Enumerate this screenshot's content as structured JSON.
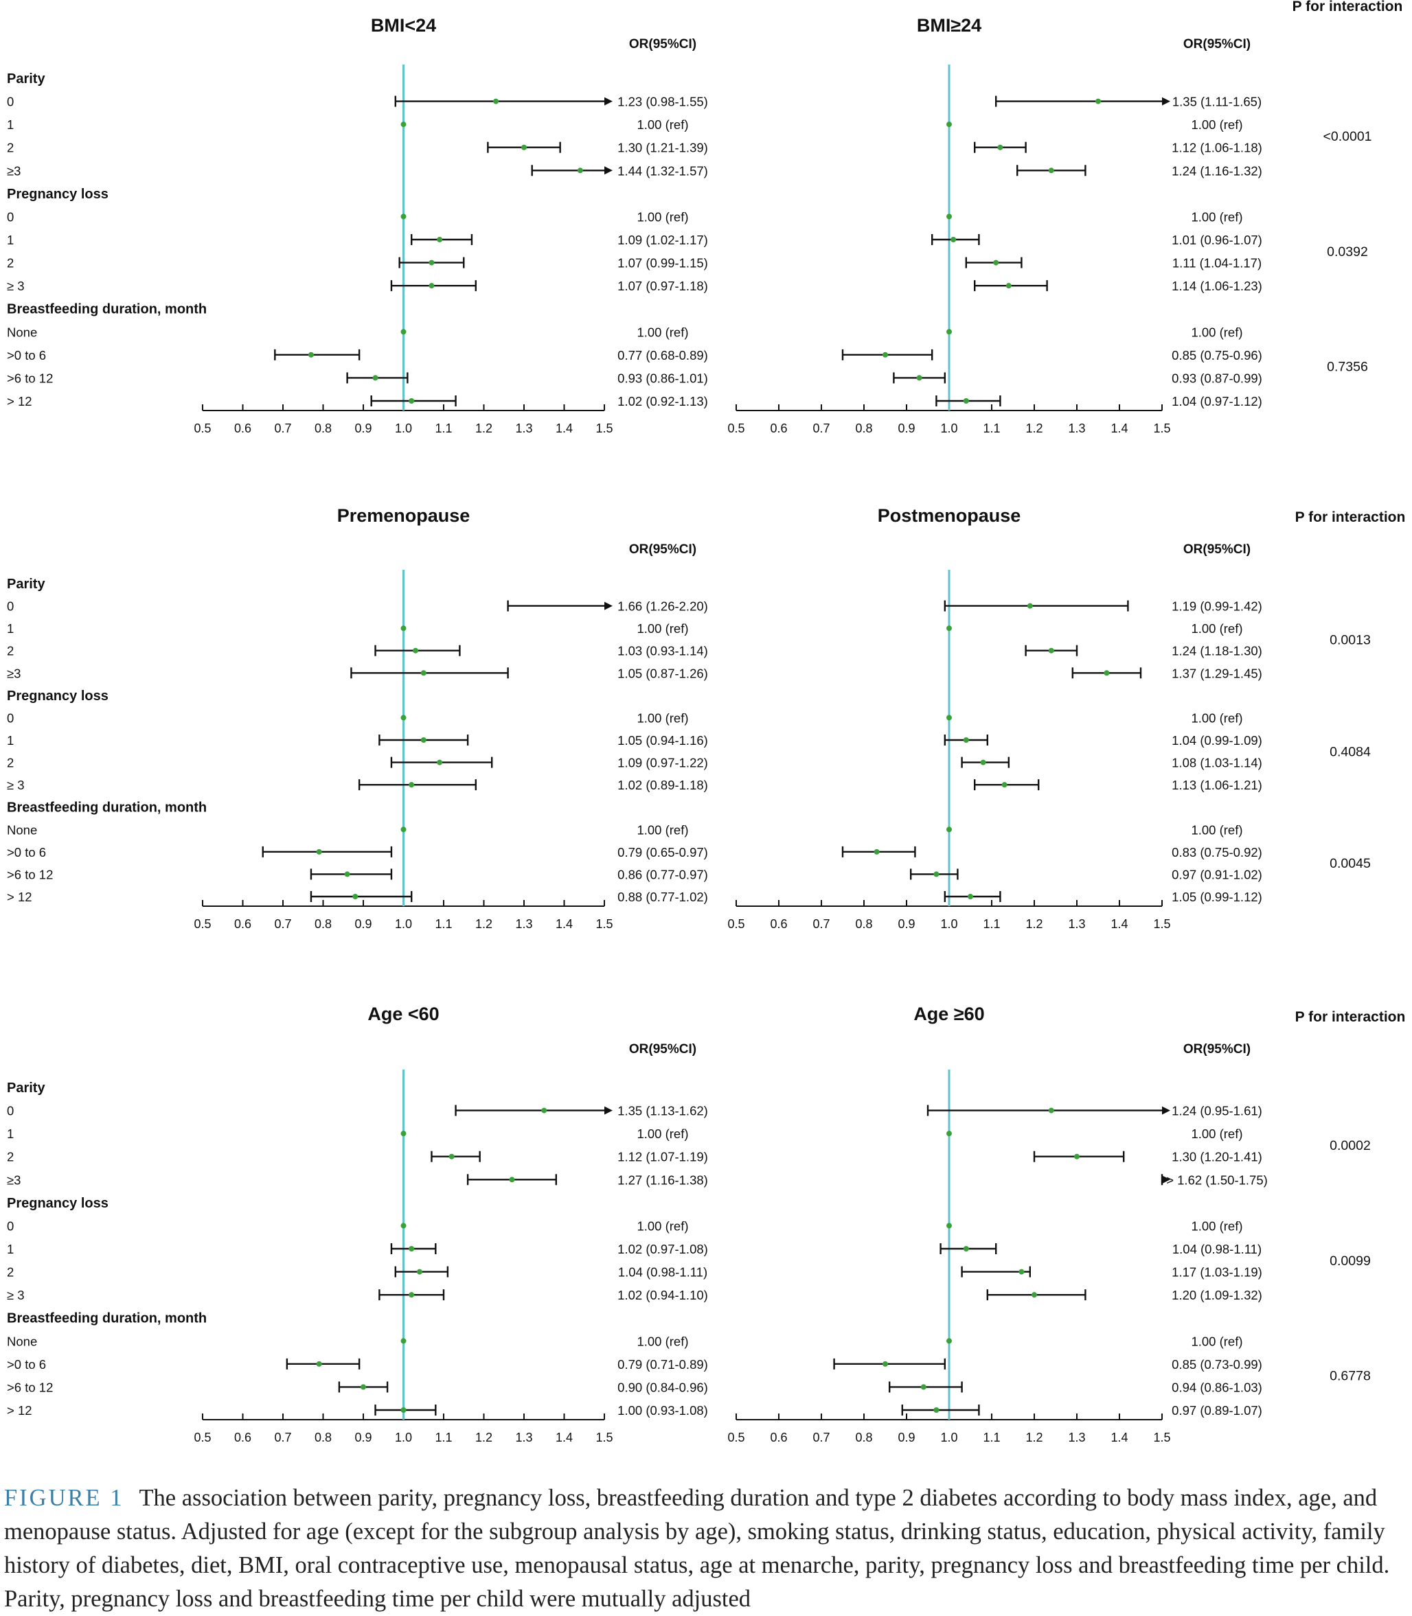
{
  "figure": {
    "p_header": "P for interaction",
    "or_header": "OR(95%CI)",
    "axis_ticks": [
      "0.5",
      "0.6",
      "0.7",
      "0.8",
      "0.9",
      "1.0",
      "1.1",
      "1.2",
      "1.3",
      "1.4",
      "1.5"
    ],
    "rows": [
      {
        "label": "Parity",
        "heading": true
      },
      {
        "label": "0"
      },
      {
        "label": "1"
      },
      {
        "label": "2"
      },
      {
        "label": "≥3"
      },
      {
        "label": "Pregnancy loss",
        "heading": true
      },
      {
        "label": "0"
      },
      {
        "label": "1"
      },
      {
        "label": "2"
      },
      {
        "label": "≥ 3"
      },
      {
        "label": "Breastfeeding duration, month",
        "heading": true
      },
      {
        "label": "None"
      },
      {
        "label": ">0 to 6"
      },
      {
        "label": ">6 to 12"
      },
      {
        "label": "> 12"
      }
    ]
  },
  "chart_data": [
    {
      "type": "forest",
      "title": "BMI<24",
      "x_range": [
        0.5,
        1.5
      ],
      "reference_line": 1.0,
      "points": [
        {
          "group": "Parity",
          "category": "0",
          "or": 1.23,
          "lo": 0.98,
          "hi": 1.55,
          "text": "1.23 (0.98-1.55)"
        },
        {
          "group": "Parity",
          "category": "1",
          "or": 1.0,
          "lo": 1.0,
          "hi": 1.0,
          "text": "1.00 (ref)"
        },
        {
          "group": "Parity",
          "category": "2",
          "or": 1.3,
          "lo": 1.21,
          "hi": 1.39,
          "text": "1.30 (1.21-1.39)"
        },
        {
          "group": "Parity",
          "category": "≥3",
          "or": 1.44,
          "lo": 1.32,
          "hi": 1.57,
          "text": "1.44 (1.32-1.57)"
        },
        {
          "group": "Pregnancy loss",
          "category": "0",
          "or": 1.0,
          "lo": 1.0,
          "hi": 1.0,
          "text": "1.00 (ref)"
        },
        {
          "group": "Pregnancy loss",
          "category": "1",
          "or": 1.09,
          "lo": 1.02,
          "hi": 1.17,
          "text": "1.09 (1.02-1.17)"
        },
        {
          "group": "Pregnancy loss",
          "category": "2",
          "or": 1.07,
          "lo": 0.99,
          "hi": 1.15,
          "text": "1.07 (0.99-1.15)"
        },
        {
          "group": "Pregnancy loss",
          "category": "≥ 3",
          "or": 1.07,
          "lo": 0.97,
          "hi": 1.18,
          "text": "1.07 (0.97-1.18)"
        },
        {
          "group": "Breastfeeding",
          "category": "None",
          "or": 1.0,
          "lo": 1.0,
          "hi": 1.0,
          "text": "1.00 (ref)"
        },
        {
          "group": "Breastfeeding",
          "category": ">0 to 6",
          "or": 0.77,
          "lo": 0.68,
          "hi": 0.89,
          "text": "0.77 (0.68-0.89)"
        },
        {
          "group": "Breastfeeding",
          "category": ">6 to 12",
          "or": 0.93,
          "lo": 0.86,
          "hi": 1.01,
          "text": "0.93 (0.86-1.01)"
        },
        {
          "group": "Breastfeeding",
          "category": "> 12",
          "or": 1.02,
          "lo": 0.92,
          "hi": 1.13,
          "text": "1.02 (0.92-1.13)"
        }
      ]
    },
    {
      "type": "forest",
      "title": "BMI≥24",
      "x_range": [
        0.5,
        1.5
      ],
      "reference_line": 1.0,
      "p_values": [
        "<0.0001",
        "0.0392",
        "0.7356"
      ],
      "points": [
        {
          "group": "Parity",
          "category": "0",
          "or": 1.35,
          "lo": 1.11,
          "hi": 1.65,
          "text": "1.35 (1.11-1.65)"
        },
        {
          "group": "Parity",
          "category": "1",
          "or": 1.0,
          "lo": 1.0,
          "hi": 1.0,
          "text": "1.00 (ref)"
        },
        {
          "group": "Parity",
          "category": "2",
          "or": 1.12,
          "lo": 1.06,
          "hi": 1.18,
          "text": "1.12 (1.06-1.18)"
        },
        {
          "group": "Parity",
          "category": "≥3",
          "or": 1.24,
          "lo": 1.16,
          "hi": 1.32,
          "text": "1.24 (1.16-1.32)"
        },
        {
          "group": "Pregnancy loss",
          "category": "0",
          "or": 1.0,
          "lo": 1.0,
          "hi": 1.0,
          "text": "1.00 (ref)"
        },
        {
          "group": "Pregnancy loss",
          "category": "1",
          "or": 1.01,
          "lo": 0.96,
          "hi": 1.07,
          "text": "1.01 (0.96-1.07)"
        },
        {
          "group": "Pregnancy loss",
          "category": "2",
          "or": 1.11,
          "lo": 1.04,
          "hi": 1.17,
          "text": "1.11 (1.04-1.17)"
        },
        {
          "group": "Pregnancy loss",
          "category": "≥ 3",
          "or": 1.14,
          "lo": 1.06,
          "hi": 1.23,
          "text": "1.14 (1.06-1.23)"
        },
        {
          "group": "Breastfeeding",
          "category": "None",
          "or": 1.0,
          "lo": 1.0,
          "hi": 1.0,
          "text": "1.00 (ref)"
        },
        {
          "group": "Breastfeeding",
          "category": ">0 to 6",
          "or": 0.85,
          "lo": 0.75,
          "hi": 0.96,
          "text": "0.85 (0.75-0.96)"
        },
        {
          "group": "Breastfeeding",
          "category": ">6 to 12",
          "or": 0.93,
          "lo": 0.87,
          "hi": 0.99,
          "text": "0.93 (0.87-0.99)"
        },
        {
          "group": "Breastfeeding",
          "category": "> 12",
          "or": 1.04,
          "lo": 0.97,
          "hi": 1.12,
          "text": "1.04 (0.97-1.12)"
        }
      ]
    },
    {
      "type": "forest",
      "title": "Premenopause",
      "x_range": [
        0.5,
        1.5
      ],
      "reference_line": 1.0,
      "points": [
        {
          "group": "Parity",
          "category": "0",
          "or": 1.66,
          "lo": 1.26,
          "hi": 2.2,
          "text": "1.66 (1.26-2.20)"
        },
        {
          "group": "Parity",
          "category": "1",
          "or": 1.0,
          "lo": 1.0,
          "hi": 1.0,
          "text": "1.00 (ref)"
        },
        {
          "group": "Parity",
          "category": "2",
          "or": 1.03,
          "lo": 0.93,
          "hi": 1.14,
          "text": "1.03 (0.93-1.14)"
        },
        {
          "group": "Parity",
          "category": "≥ 3",
          "or": 1.05,
          "lo": 0.87,
          "hi": 1.26,
          "text": "1.05 (0.87-1.26)"
        },
        {
          "group": "Pregnancy loss",
          "category": "0",
          "or": 1.0,
          "lo": 1.0,
          "hi": 1.0,
          "text": "1.00 (ref)"
        },
        {
          "group": "Pregnancy loss",
          "category": "1",
          "or": 1.05,
          "lo": 0.94,
          "hi": 1.16,
          "text": "1.05 (0.94-1.16)"
        },
        {
          "group": "Pregnancy loss",
          "category": "2",
          "or": 1.09,
          "lo": 0.97,
          "hi": 1.22,
          "text": "1.09 (0.97-1.22)"
        },
        {
          "group": "Pregnancy loss",
          "category": "≥ 3",
          "or": 1.02,
          "lo": 0.89,
          "hi": 1.18,
          "text": "1.02 (0.89-1.18)"
        },
        {
          "group": "Breastfeeding",
          "category": "None",
          "or": 1.0,
          "lo": 1.0,
          "hi": 1.0,
          "text": "1.00 (ref)"
        },
        {
          "group": "Breastfeeding",
          "category": ">0 to 6",
          "or": 0.79,
          "lo": 0.65,
          "hi": 0.97,
          "text": "0.79 (0.65-0.97)"
        },
        {
          "group": "Breastfeeding",
          "category": ">6 to 12",
          "or": 0.86,
          "lo": 0.77,
          "hi": 0.97,
          "text": "0.86 (0.77-0.97)"
        },
        {
          "group": "Breastfeeding",
          "category": "> 12",
          "or": 0.88,
          "lo": 0.77,
          "hi": 1.02,
          "text": "0.88 (0.77-1.02)"
        }
      ]
    },
    {
      "type": "forest",
      "title": "Postmenopause",
      "x_range": [
        0.5,
        1.5
      ],
      "reference_line": 1.0,
      "p_values": [
        "0.0013",
        "0.4084",
        "0.0045"
      ],
      "points": [
        {
          "group": "Parity",
          "category": "0",
          "or": 1.19,
          "lo": 0.99,
          "hi": 1.42,
          "text": "1.19 (0.99-1.42)"
        },
        {
          "group": "Parity",
          "category": "1",
          "or": 1.0,
          "lo": 1.0,
          "hi": 1.0,
          "text": "1.00 (ref)"
        },
        {
          "group": "Parity",
          "category": "2",
          "or": 1.24,
          "lo": 1.18,
          "hi": 1.3,
          "text": "1.24 (1.18-1.30)"
        },
        {
          "group": "Parity",
          "category": "≥ 3",
          "or": 1.37,
          "lo": 1.29,
          "hi": 1.45,
          "text": "1.37 (1.29-1.45)"
        },
        {
          "group": "Pregnancy loss",
          "category": "0",
          "or": 1.0,
          "lo": 1.0,
          "hi": 1.0,
          "text": "1.00 (ref)"
        },
        {
          "group": "Pregnancy loss",
          "category": "1",
          "or": 1.04,
          "lo": 0.99,
          "hi": 1.09,
          "text": "1.04 (0.99-1.09)"
        },
        {
          "group": "Pregnancy loss",
          "category": "2",
          "or": 1.08,
          "lo": 1.03,
          "hi": 1.14,
          "text": "1.08 (1.03-1.14)"
        },
        {
          "group": "Pregnancy loss",
          "category": "≥ 3",
          "or": 1.13,
          "lo": 1.06,
          "hi": 1.21,
          "text": "1.13 (1.06-1.21)"
        },
        {
          "group": "Breastfeeding",
          "category": "None",
          "or": 1.0,
          "lo": 1.0,
          "hi": 1.0,
          "text": "1.00 (ref)"
        },
        {
          "group": "Breastfeeding",
          "category": ">0 to 6",
          "or": 0.83,
          "lo": 0.75,
          "hi": 0.92,
          "text": "0.83 (0.75-0.92)"
        },
        {
          "group": "Breastfeeding",
          "category": ">6 to 12",
          "or": 0.97,
          "lo": 0.91,
          "hi": 1.02,
          "text": "0.97 (0.91-1.02)"
        },
        {
          "group": "Breastfeeding",
          "category": "> 12",
          "or": 1.05,
          "lo": 0.99,
          "hi": 1.12,
          "text": "1.05 (0.99-1.12)"
        }
      ]
    },
    {
      "type": "forest",
      "title": "Age <60",
      "x_range": [
        0.5,
        1.5
      ],
      "reference_line": 1.0,
      "points": [
        {
          "group": "Parity",
          "category": "0",
          "or": 1.35,
          "lo": 1.13,
          "hi": 1.62,
          "text": "1.35 (1.13-1.62)"
        },
        {
          "group": "Parity",
          "category": "1",
          "or": 1.0,
          "lo": 1.0,
          "hi": 1.0,
          "text": "1.00 (ref)"
        },
        {
          "group": "Parity",
          "category": "2",
          "or": 1.12,
          "lo": 1.07,
          "hi": 1.19,
          "text": "1.12 (1.07-1.19)"
        },
        {
          "group": "Parity",
          "category": "≥ 3",
          "or": 1.27,
          "lo": 1.16,
          "hi": 1.38,
          "text": "1.27 (1.16-1.38)"
        },
        {
          "group": "Pregnancy loss",
          "category": "0",
          "or": 1.0,
          "lo": 1.0,
          "hi": 1.0,
          "text": "1.00 (ref)"
        },
        {
          "group": "Pregnancy loss",
          "category": "1",
          "or": 1.02,
          "lo": 0.97,
          "hi": 1.08,
          "text": "1.02 (0.97-1.08)"
        },
        {
          "group": "Pregnancy loss",
          "category": "2",
          "or": 1.04,
          "lo": 0.98,
          "hi": 1.11,
          "text": "1.04 (0.98-1.11)"
        },
        {
          "group": "Pregnancy loss",
          "category": "≥3",
          "or": 1.02,
          "lo": 0.94,
          "hi": 1.1,
          "text": "1.02 (0.94-1.10)"
        },
        {
          "group": "Breastfeeding",
          "category": "None",
          "or": 1.0,
          "lo": 1.0,
          "hi": 1.0,
          "text": "1.00 (ref)"
        },
        {
          "group": "Breastfeeding",
          "category": ">0 to 6",
          "or": 0.79,
          "lo": 0.71,
          "hi": 0.89,
          "text": "0.79 (0.71-0.89)"
        },
        {
          "group": "Breastfeeding",
          "category": ">6 to 12",
          "or": 0.9,
          "lo": 0.84,
          "hi": 0.96,
          "text": "0.90 (0.84-0.96)"
        },
        {
          "group": "Breastfeeding",
          "category": "> 12",
          "or": 1.0,
          "lo": 0.93,
          "hi": 1.08,
          "text": "1.00 (0.93-1.08)"
        }
      ]
    },
    {
      "type": "forest",
      "title": "Age ≥60",
      "x_range": [
        0.5,
        1.5
      ],
      "reference_line": 1.0,
      "p_values": [
        "0.0002",
        "0.0099",
        "0.6778"
      ],
      "points": [
        {
          "group": "Parity",
          "category": "0",
          "or": 1.24,
          "lo": 0.95,
          "hi": 1.61,
          "text": "1.24 (0.95-1.61)"
        },
        {
          "group": "Parity",
          "category": "1",
          "or": 1.0,
          "lo": 1.0,
          "hi": 1.0,
          "text": "1.00 (ref)"
        },
        {
          "group": "Parity",
          "category": "2",
          "or": 1.3,
          "lo": 1.2,
          "hi": 1.41,
          "text": "1.30 (1.20-1.41)"
        },
        {
          "group": "Parity",
          "category": "≥ 3",
          "or": 1.62,
          "lo": 1.5,
          "hi": 1.75,
          "text": "> 1.62 (1.50-1.75)"
        },
        {
          "group": "Pregnancy loss",
          "category": "0",
          "or": 1.0,
          "lo": 1.0,
          "hi": 1.0,
          "text": "1.00 (ref)"
        },
        {
          "group": "Pregnancy loss",
          "category": "1",
          "or": 1.04,
          "lo": 0.98,
          "hi": 1.11,
          "text": "1.04 (0.98-1.11)"
        },
        {
          "group": "Pregnancy loss",
          "category": "2",
          "or": 1.17,
          "lo": 1.03,
          "hi": 1.19,
          "text": "1.17 (1.03-1.19)"
        },
        {
          "group": "Pregnancy loss",
          "category": "≥ 3",
          "or": 1.2,
          "lo": 1.09,
          "hi": 1.32,
          "text": "1.20 (1.09-1.32)"
        },
        {
          "group": "Breastfeeding",
          "category": "None",
          "or": 1.0,
          "lo": 1.0,
          "hi": 1.0,
          "text": "1.00 (ref)"
        },
        {
          "group": "Breastfeeding",
          "category": ">0 to 6",
          "or": 0.85,
          "lo": 0.73,
          "hi": 0.99,
          "text": "0.85 (0.73-0.99)"
        },
        {
          "group": "Breastfeeding",
          "category": ">6 to 12",
          "or": 0.94,
          "lo": 0.86,
          "hi": 1.03,
          "text": "0.94 (0.86-1.03)"
        },
        {
          "group": "Breastfeeding",
          "category": "> 12",
          "or": 0.97,
          "lo": 0.89,
          "hi": 1.07,
          "text": "0.97 (0.89-1.07)"
        }
      ]
    }
  ],
  "caption": {
    "label": "FIGURE 1",
    "text": "The association between parity, pregnancy loss, breastfeeding duration and type 2 diabetes according to body mass index, age, and menopause status. Adjusted for age (except for the subgroup analysis by age), smoking status, drinking status, education, physical activity, family history of diabetes, diet, BMI, oral contraceptive use, menopausal status, age at menarche, parity, pregnancy loss and breastfeeding time per child. Parity, pregnancy loss and breastfeeding time per child were mutually adjusted"
  },
  "colors": {
    "reference_line": "#62c3c8",
    "point": "#3aa13a",
    "line": "#111111"
  }
}
